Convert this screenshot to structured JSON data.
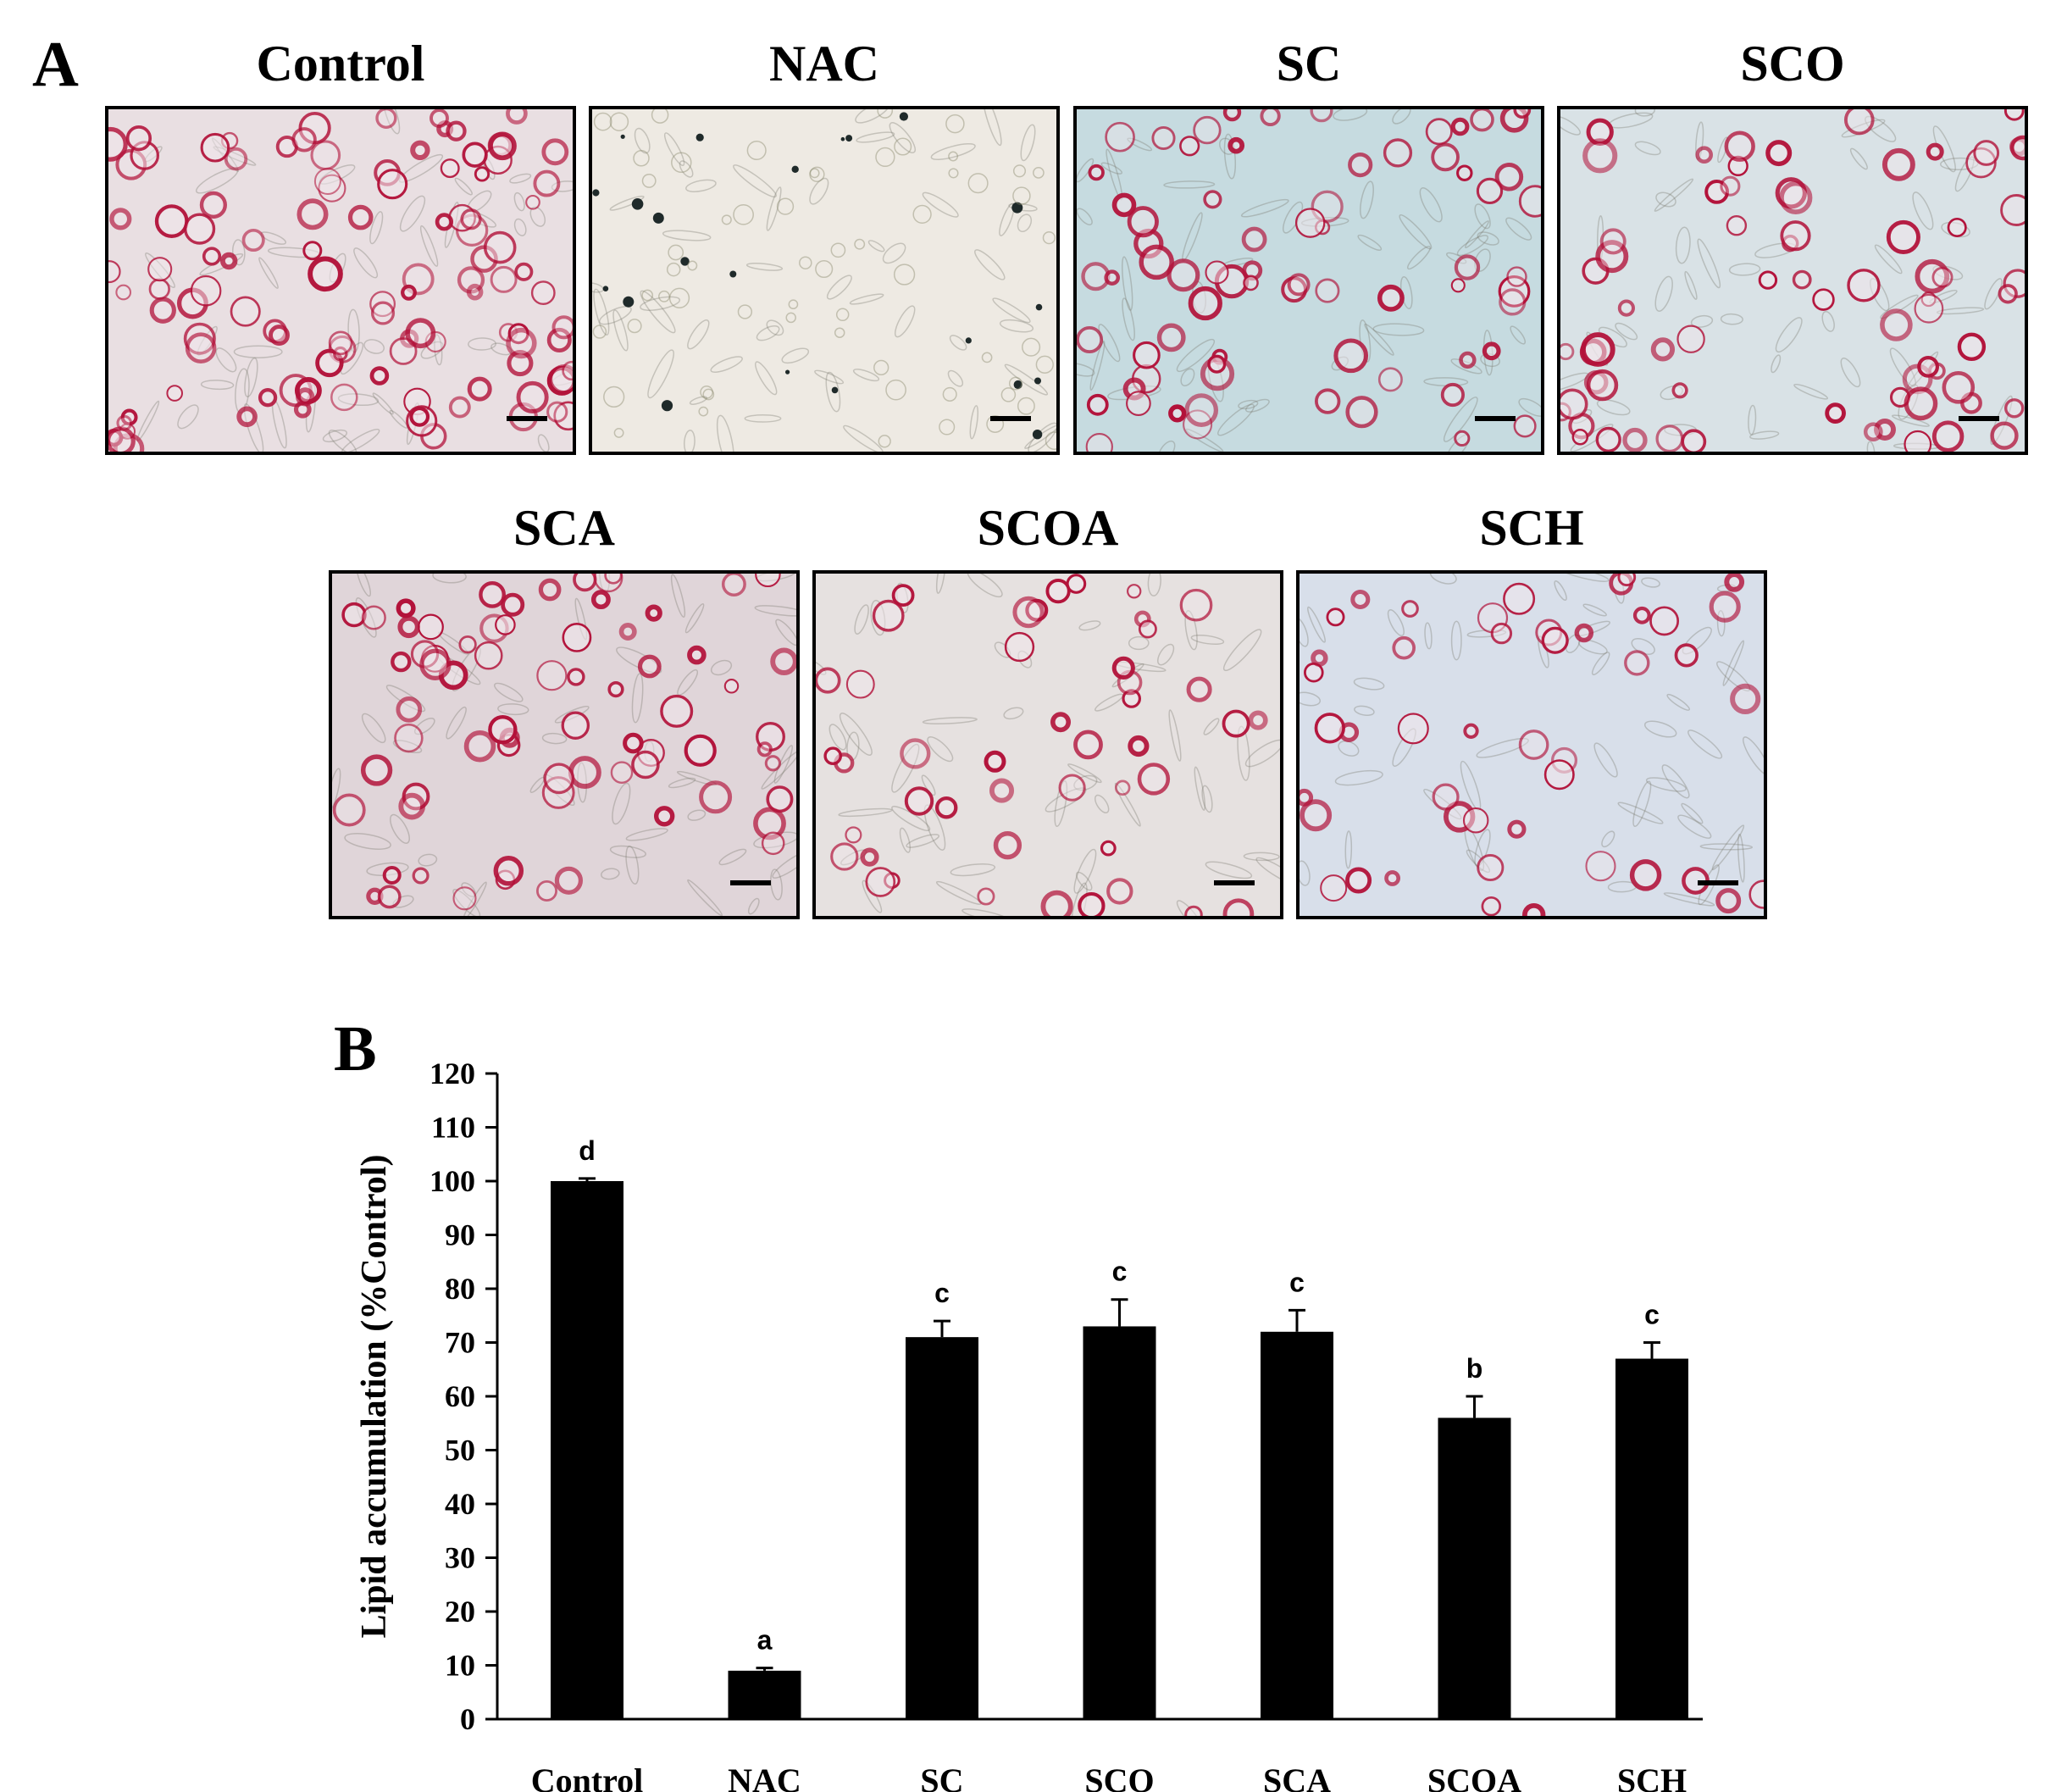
{
  "panel_a": {
    "letter": "A",
    "images": [
      {
        "title": "Control",
        "stain": "dense",
        "background": "#e9dfe2"
      },
      {
        "title": "NAC",
        "stain": "none",
        "background": "#eeeae3"
      },
      {
        "title": "SC",
        "stain": "medium",
        "background": "#c6dbe0"
      },
      {
        "title": "SCO",
        "stain": "medium",
        "background": "#d9e2e6"
      },
      {
        "title": "SCA",
        "stain": "medium",
        "background": "#e0d5d9"
      },
      {
        "title": "SCOA",
        "stain": "light",
        "background": "#e6e1e0"
      },
      {
        "title": "SCH",
        "stain": "light",
        "background": "#d8dfea"
      }
    ],
    "stain_color": "#b3123a"
  },
  "panel_b": {
    "letter": "B",
    "chart_data": {
      "type": "bar",
      "categories": [
        "Control",
        "NAC",
        "SC",
        "SCO",
        "SCA",
        "SCOA",
        "SCH"
      ],
      "values": [
        100,
        9,
        71,
        73,
        72,
        56,
        67
      ],
      "error": [
        0.5,
        0.5,
        3,
        5,
        4,
        4,
        3
      ],
      "significance": [
        "d",
        "a",
        "c",
        "c",
        "c",
        "b",
        "c"
      ],
      "ylabel": "Lipid accumulation (%Control)",
      "xlabel": "",
      "ylim": [
        0,
        120
      ],
      "yticks": [
        0,
        10,
        20,
        30,
        40,
        50,
        60,
        70,
        80,
        90,
        100,
        110,
        120
      ],
      "bar_color": "#000000",
      "grid": false,
      "legend": "none"
    }
  }
}
